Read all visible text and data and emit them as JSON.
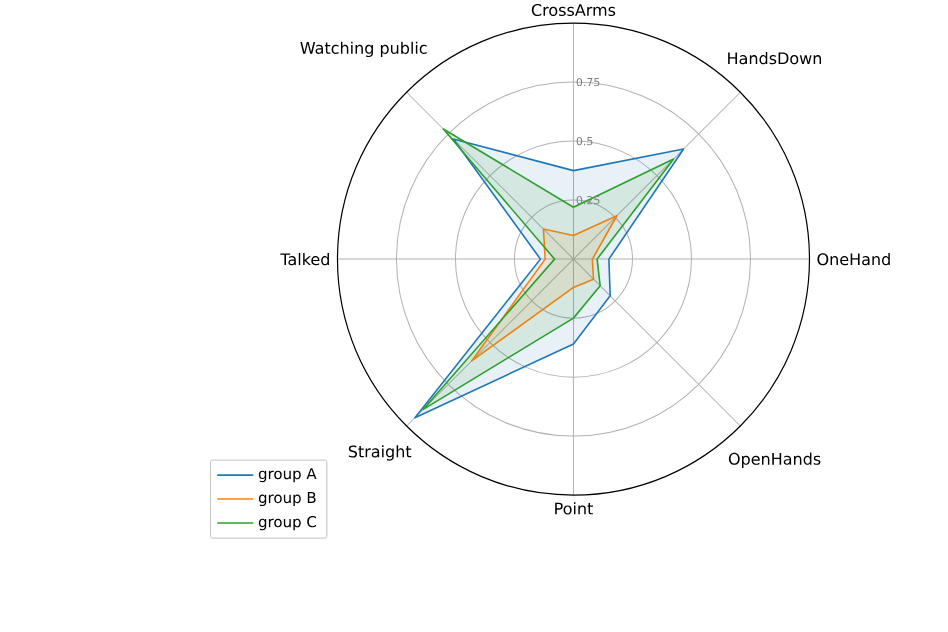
{
  "chart_data": {
    "type": "radar",
    "categories": [
      "CrossArms",
      "HandsDown",
      "OneHand",
      "OpenHands",
      "Point",
      "Straight",
      "Talked",
      "Watching public"
    ],
    "series": [
      {
        "name": "group A",
        "color": "#1f77b4",
        "values": [
          0.375,
          0.66,
          0.15,
          0.22,
          0.36,
          0.95,
          0.14,
          0.72
        ]
      },
      {
        "name": "group B",
        "color": "#ff7f0e",
        "values": [
          0.1,
          0.26,
          0.08,
          0.12,
          0.12,
          0.61,
          0.12,
          0.18
        ]
      },
      {
        "name": "group C",
        "color": "#2ca02c",
        "values": [
          0.22,
          0.6,
          0.1,
          0.16,
          0.25,
          0.9,
          0.08,
          0.78
        ]
      }
    ],
    "ylim": [
      0,
      1
    ],
    "yticks": [
      0.25,
      0.5,
      0.75
    ],
    "grid": true,
    "legend": "bottom left"
  }
}
